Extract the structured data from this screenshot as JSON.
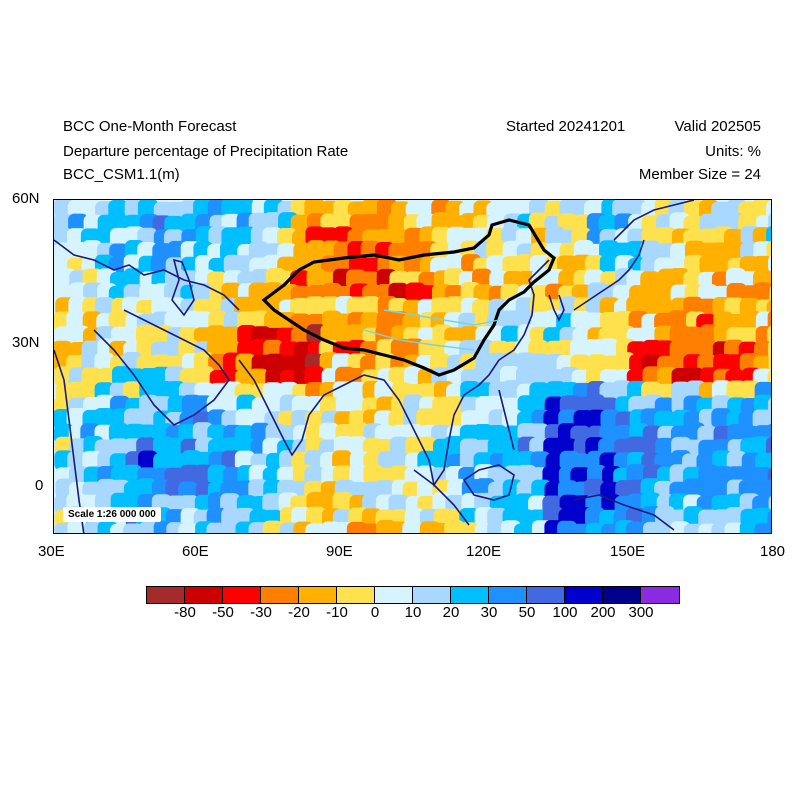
{
  "header": {
    "title": "BCC One-Month Forecast",
    "subtitle": "Departure percentage of Precipitation Rate",
    "model": "BCC_CSM1.1(m)",
    "started": "Started 20241201",
    "valid": "Valid 202505",
    "units": "Units: %",
    "member_size": "Member Size = 24"
  },
  "map": {
    "lat_range": [
      -10,
      60
    ],
    "lon_range": [
      30,
      180
    ],
    "lat_ticks": [
      "60N",
      "30N",
      "0"
    ],
    "lon_ticks": [
      "30E",
      "60E",
      "90E",
      "120E",
      "150E",
      "180"
    ],
    "scale_label": "Scale 1:26 000 000",
    "ocean_color": "#d6f4ff",
    "coast_color": "#1a1a7a",
    "border_color": "#000000"
  },
  "colorbar": {
    "colors": [
      "#a52a2a",
      "#cc0000",
      "#ff0000",
      "#ff7f00",
      "#ffb000",
      "#ffe14d",
      "#d6f4ff",
      "#a8d8ff",
      "#00bfff",
      "#1e90ff",
      "#4169e1",
      "#0000cd",
      "#00008b",
      "#8a2be2"
    ],
    "labels": [
      "-80",
      "-50",
      "-30",
      "-20",
      "-10",
      "0",
      "10",
      "20",
      "30",
      "50",
      "100",
      "200",
      "300"
    ]
  }
}
